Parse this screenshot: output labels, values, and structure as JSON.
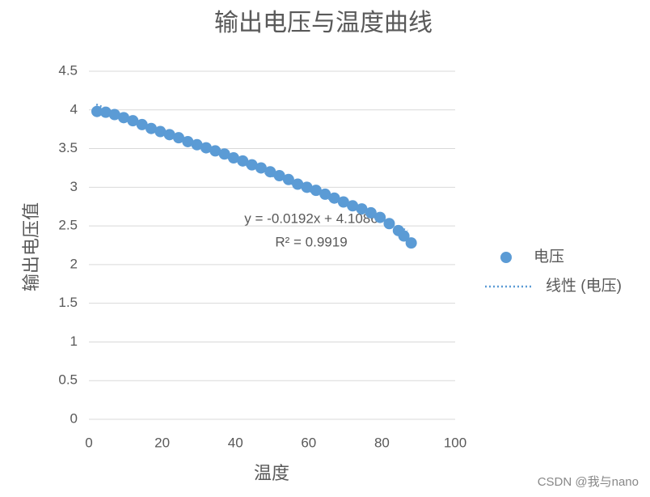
{
  "chart_data": {
    "type": "scatter",
    "title": "输出电压与温度曲线",
    "x_label": "温度",
    "y_label": "输出电压值",
    "xlim": [
      0,
      100
    ],
    "xticks": [
      0,
      20,
      40,
      60,
      80,
      100
    ],
    "ylim": [
      0,
      4.5
    ],
    "yticks": [
      0,
      0.5,
      1,
      1.5,
      2,
      2.5,
      3,
      3.5,
      4,
      4.5
    ],
    "grid": true,
    "legend": "right",
    "series": [
      {
        "name": "电压",
        "color": "#5b9bd5",
        "x": [
          2.2,
          4.6,
          7,
          9.5,
          12,
          14.5,
          17,
          19.5,
          22,
          24.5,
          27,
          29.5,
          32,
          34.5,
          37,
          39.5,
          42,
          44.5,
          47,
          49.5,
          52,
          54.5,
          57,
          59.5,
          62,
          64.5,
          67,
          69.5,
          72,
          74.5,
          77,
          79.5,
          82,
          84.5,
          86,
          88
        ],
        "values": [
          3.98,
          3.97,
          3.94,
          3.9,
          3.86,
          3.81,
          3.76,
          3.72,
          3.68,
          3.64,
          3.59,
          3.55,
          3.51,
          3.47,
          3.43,
          3.38,
          3.34,
          3.29,
          3.25,
          3.2,
          3.15,
          3.1,
          3.04,
          3.0,
          2.96,
          2.91,
          2.86,
          2.81,
          2.76,
          2.72,
          2.67,
          2.61,
          2.53,
          2.44,
          2.37,
          2.28
        ]
      }
    ],
    "trendline": {
      "name": "线性 (电压)",
      "color": "#5b9bd5",
      "slope": -0.0192,
      "intercept": 4.1086,
      "x": [
        2,
        87
      ],
      "equation": "y = -0.0192x + 4.1086",
      "r_squared": "R² = 0.9919"
    },
    "watermark": "CSDN @我与nano"
  }
}
